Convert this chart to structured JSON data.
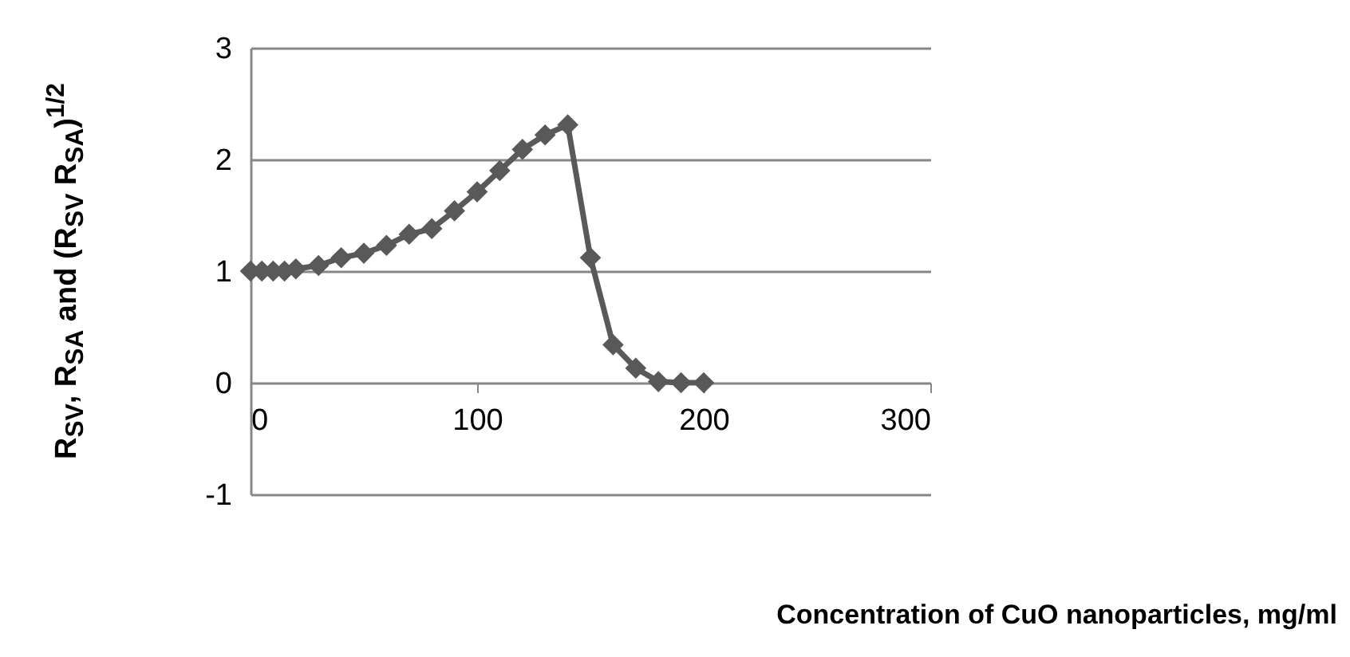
{
  "chart_data": {
    "type": "line",
    "xlabel": "Concentration of CuO nanoparticles, mg/ml",
    "ylabel": "R$_{SV}$, R$_{SA}$ and (R$_{SV}$ R$_{SA}$)$^{1/2}$",
    "x": [
      0,
      5,
      10,
      15,
      20,
      30,
      40,
      50,
      60,
      70,
      80,
      90,
      100,
      110,
      120,
      130,
      140,
      150,
      160,
      170,
      180,
      190,
      200
    ],
    "series": [
      {
        "color": "#595959",
        "values": [
          1.0,
          1.0,
          1.0,
          1.0,
          1.02,
          1.05,
          1.12,
          1.16,
          1.23,
          1.33,
          1.38,
          1.54,
          1.71,
          1.9,
          2.09,
          2.22,
          2.31,
          1.12,
          0.34,
          0.13,
          0.01,
          0,
          0
        ]
      }
    ],
    "xlim": [
      0,
      300
    ],
    "xticks": [
      0,
      100,
      200,
      300
    ],
    "ylim": [
      -1,
      3
    ],
    "yticks": [
      -1,
      0,
      1,
      2,
      3
    ],
    "grid": "y",
    "marker": "diamond",
    "line_style": "solid"
  }
}
